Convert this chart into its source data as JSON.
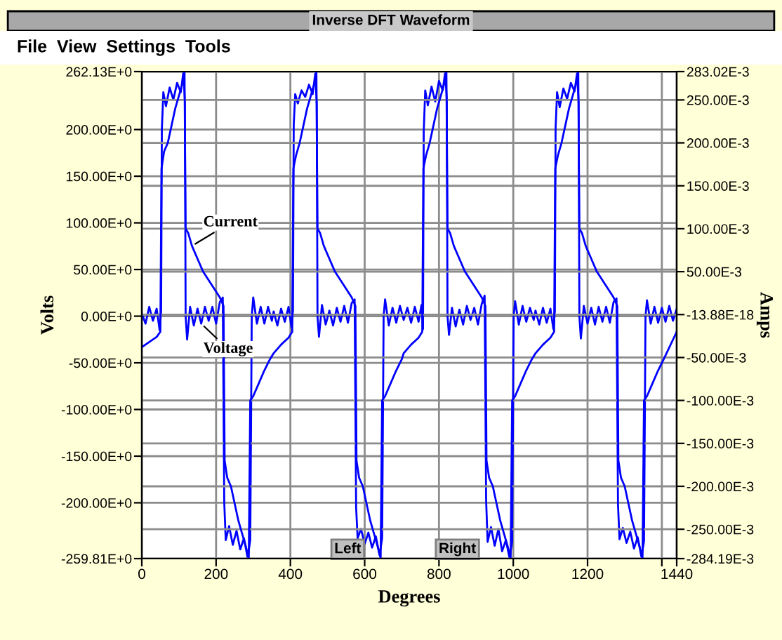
{
  "chart_data": {
    "type": "line",
    "title": "Inverse DFT Waveform",
    "xlabel": "Degrees",
    "ylabel": "Volts",
    "y2label": "Amps",
    "annotations": [
      "File  View  Settings  Tools",
      "Left",
      "Right"
    ],
    "xlim": [
      0,
      1440
    ],
    "xticks": [
      0,
      200,
      400,
      600,
      800,
      1000,
      1200,
      {
        "value": 1400,
        "label": null
      },
      1440
    ],
    "ylim": [
      -259.81,
      262.13
    ],
    "yticks": [
      {
        "value": 262.13,
        "label": "262.13E+0"
      },
      {
        "value": 200,
        "label": "200.00E+0"
      },
      {
        "value": 150,
        "label": "150.00E+0"
      },
      {
        "value": 100,
        "label": "100.00E+0"
      },
      {
        "value": 50,
        "label": "50.00E+0"
      },
      {
        "value": 0,
        "label": "0.00E+0"
      },
      {
        "value": -50,
        "label": "-50.00E+0"
      },
      {
        "value": -100,
        "label": "-100.00E+0"
      },
      {
        "value": -150,
        "label": "-150.00E+0"
      },
      {
        "value": -200,
        "label": "-200.00E+0"
      },
      {
        "value": -259.81,
        "label": "-259.81E+0"
      }
    ],
    "y2lim": [
      -0.28419,
      0.28302
    ],
    "y2ticks": [
      {
        "value": 0.28302,
        "label": "283.02E-3"
      },
      {
        "value": 0.25,
        "label": "250.00E-3"
      },
      {
        "value": 0.2,
        "label": "200.00E-3"
      },
      {
        "value": 0.15,
        "label": "150.00E-3"
      },
      {
        "value": 0.1,
        "label": "100.00E-3"
      },
      {
        "value": 0.05,
        "label": "50.00E-3"
      },
      {
        "value": -1.388e-17,
        "label": "-13.88E-18"
      },
      {
        "value": -0.05,
        "label": "-50.00E-3"
      },
      {
        "value": -0.1,
        "label": "-100.00E-3"
      },
      {
        "value": -0.15,
        "label": "-150.00E-3"
      },
      {
        "value": -0.2,
        "label": "-200.00E-3"
      },
      {
        "value": -0.25,
        "label": "-250.00E-3"
      },
      {
        "value": -0.28419,
        "label": "-284.19E-3"
      }
    ],
    "grid": true,
    "legend": false,
    "marker": "none",
    "line_style": "solid",
    "series": [
      {
        "name": "Current",
        "color": "#0000ff",
        "axis": "y2",
        "x": [
          0,
          20,
          40,
          50,
          53,
          60,
          70,
          80,
          90,
          100,
          110,
          115,
          118,
          125,
          135,
          150,
          165,
          180,
          195,
          210,
          220,
          223,
          230,
          240,
          250,
          260,
          270,
          280,
          288,
          292,
          300,
          315,
          330,
          345,
          355,
          375,
          395,
          405,
          408,
          415,
          425,
          435,
          445,
          455,
          465,
          470,
          473,
          480,
          490,
          505,
          520,
          535,
          550,
          565,
          575,
          578,
          585,
          595,
          605,
          615,
          625,
          635,
          643,
          647,
          655,
          670,
          685,
          700,
          705,
          725,
          745,
          755,
          758,
          765,
          775,
          785,
          795,
          805,
          815,
          820,
          823,
          830,
          840,
          855,
          870,
          885,
          900,
          915,
          925,
          928,
          935,
          945,
          955,
          965,
          975,
          985,
          993,
          997,
          1005,
          1020,
          1035,
          1050,
          1060,
          1080,
          1100,
          1110,
          1113,
          1120,
          1130,
          1140,
          1150,
          1160,
          1170,
          1175,
          1178,
          1185,
          1195,
          1210,
          1225,
          1240,
          1255,
          1270,
          1280,
          1283,
          1290,
          1300,
          1310,
          1320,
          1330,
          1340,
          1348,
          1352,
          1360,
          1375,
          1390,
          1405,
          1440
        ],
        "values": [
          -0.038,
          -0.032,
          -0.026,
          -0.02,
          0.17,
          0.19,
          0.2,
          0.22,
          0.24,
          0.255,
          0.27,
          0.283,
          0.1,
          0.095,
          0.08,
          0.065,
          0.05,
          0.04,
          0.03,
          0.02,
          0.01,
          -0.17,
          -0.19,
          -0.2,
          -0.22,
          -0.24,
          -0.255,
          -0.27,
          -0.284,
          -0.1,
          -0.095,
          -0.08,
          -0.065,
          -0.052,
          -0.045,
          -0.035,
          -0.027,
          -0.02,
          0.17,
          0.185,
          0.2,
          0.22,
          0.24,
          0.255,
          0.27,
          0.283,
          0.1,
          0.095,
          0.08,
          0.065,
          0.05,
          0.04,
          0.03,
          0.02,
          0.01,
          -0.17,
          -0.19,
          -0.2,
          -0.22,
          -0.24,
          -0.255,
          -0.27,
          -0.284,
          -0.1,
          -0.095,
          -0.08,
          -0.065,
          -0.052,
          -0.045,
          -0.035,
          -0.027,
          -0.02,
          0.17,
          0.185,
          0.2,
          0.22,
          0.24,
          0.255,
          0.27,
          0.283,
          0.1,
          0.095,
          0.08,
          0.065,
          0.05,
          0.04,
          0.03,
          0.02,
          0.01,
          -0.17,
          -0.19,
          -0.2,
          -0.22,
          -0.24,
          -0.255,
          -0.27,
          -0.284,
          -0.1,
          -0.095,
          -0.08,
          -0.065,
          -0.052,
          -0.045,
          -0.035,
          -0.027,
          -0.02,
          0.17,
          0.185,
          0.2,
          0.22,
          0.24,
          0.255,
          0.27,
          0.283,
          0.1,
          0.095,
          0.08,
          0.065,
          0.05,
          0.04,
          0.03,
          0.02,
          0.01,
          -0.17,
          -0.19,
          -0.2,
          -0.22,
          -0.24,
          -0.255,
          -0.27,
          -0.284,
          -0.1,
          -0.095,
          -0.08,
          -0.065,
          -0.052,
          -0.02
        ]
      },
      {
        "name": "Voltage",
        "color": "#0000ff",
        "x": [
          0,
          10,
          20,
          30,
          40,
          48,
          52,
          54,
          58,
          65,
          75,
          85,
          95,
          105,
          112,
          116,
          118,
          122,
          130,
          140,
          150,
          160,
          170,
          180,
          190,
          200,
          210,
          218,
          222,
          226,
          235,
          245,
          255,
          265,
          275,
          285,
          292,
          296,
          300,
          310,
          320,
          330,
          340,
          350,
          355,
          365,
          375,
          385,
          395,
          403,
          407,
          409,
          413,
          420,
          430,
          440,
          450,
          460,
          467,
          471,
          473,
          477,
          485,
          495,
          505,
          515,
          525,
          535,
          545,
          555,
          565,
          573,
          577,
          581,
          590,
          600,
          610,
          620,
          630,
          640,
          647,
          651,
          655,
          665,
          675,
          685,
          695,
          705,
          715,
          725,
          735,
          745,
          753,
          757,
          759,
          763,
          770,
          780,
          790,
          800,
          810,
          817,
          821,
          823,
          827,
          835,
          845,
          855,
          865,
          875,
          885,
          895,
          905,
          915,
          923,
          927,
          931,
          940,
          950,
          960,
          970,
          980,
          990,
          997,
          1001,
          1005,
          1015,
          1025,
          1035,
          1045,
          1055,
          1060,
          1070,
          1080,
          1090,
          1100,
          1108,
          1112,
          1114,
          1118,
          1125,
          1135,
          1145,
          1155,
          1165,
          1172,
          1176,
          1178,
          1182,
          1190,
          1200,
          1210,
          1220,
          1230,
          1240,
          1250,
          1260,
          1270,
          1278,
          1282,
          1286,
          1295,
          1305,
          1315,
          1325,
          1335,
          1345,
          1352,
          1356,
          1360,
          1370,
          1380,
          1390,
          1400,
          1410,
          1420,
          1430,
          1440
        ],
        "values": [
          3,
          -8,
          10,
          -5,
          8,
          -15,
          5,
          200,
          240,
          225,
          245,
          232,
          250,
          240,
          262,
          230,
          0,
          -25,
          10,
          -10,
          8,
          -8,
          10,
          -5,
          10,
          -8,
          15,
          20,
          -200,
          -240,
          -225,
          -245,
          -230,
          -250,
          -238,
          -259,
          -240,
          0,
          20,
          -8,
          10,
          -8,
          10,
          -5,
          5,
          -10,
          8,
          -6,
          10,
          -12,
          6,
          205,
          238,
          228,
          242,
          235,
          248,
          238,
          260,
          228,
          0,
          -22,
          12,
          -9,
          6,
          -10,
          9,
          -6,
          11,
          -7,
          14,
          18,
          -205,
          -238,
          -228,
          -244,
          -232,
          -248,
          -236,
          -256,
          -238,
          0,
          18,
          -10,
          9,
          -7,
          11,
          -4,
          9,
          -7,
          10,
          -6,
          12,
          -14,
          198,
          242,
          226,
          246,
          230,
          252,
          242,
          262,
          232,
          0,
          -20,
          9,
          -11,
          7,
          -9,
          11,
          -4,
          9,
          -9,
          13,
          22,
          -198,
          -242,
          -226,
          -246,
          -228,
          -252,
          -240,
          -259,
          -242,
          0,
          16,
          -9,
          11,
          -6,
          9,
          -4,
          6,
          -9,
          9,
          -7,
          8,
          -14,
          5,
          202,
          240,
          224,
          244,
          233,
          250,
          241,
          261,
          229,
          0,
          -24,
          11,
          -8,
          9,
          -9,
          10,
          -6,
          10,
          -7,
          15,
          19,
          -202,
          -239,
          -227,
          -243,
          -231,
          -249,
          -237,
          -258,
          -241,
          0,
          17,
          -8,
          10,
          -7,
          9,
          -6,
          11,
          -5,
          8
        ]
      }
    ]
  }
}
